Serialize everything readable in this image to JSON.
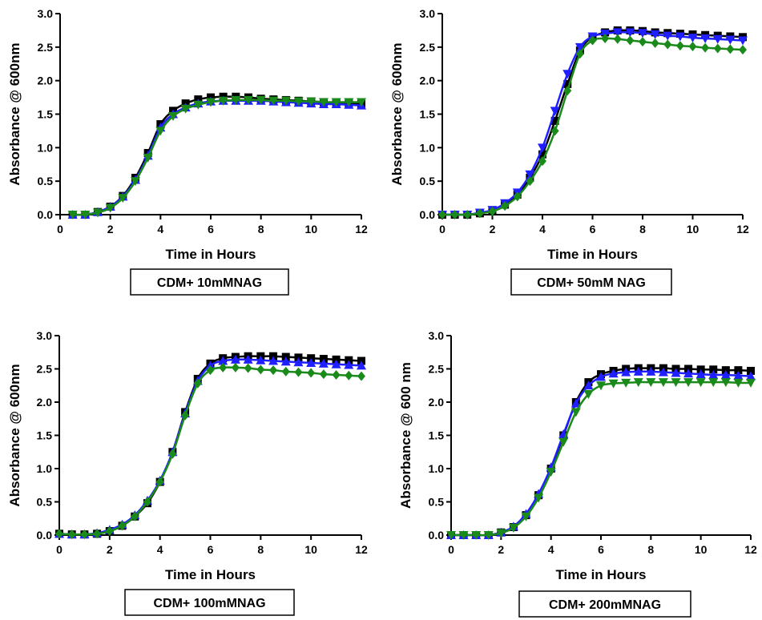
{
  "chart_data": [
    {
      "type": "line",
      "caption": "CDM+ 10mMNAG",
      "xlabel": "Time in Hours",
      "ylabel": "Absorbance @ 600nm",
      "xlim": [
        0,
        12
      ],
      "ylim": [
        0,
        3.0
      ],
      "xticks": [
        "0",
        "2",
        "4",
        "6",
        "8",
        "10",
        "12"
      ],
      "yticks": [
        "0.0",
        "0.5",
        "1.0",
        "1.5",
        "2.0",
        "2.5",
        "3.0"
      ],
      "x": [
        0.5,
        1,
        1.5,
        2,
        2.5,
        3,
        3.5,
        4,
        4.5,
        5,
        5.5,
        6,
        6.5,
        7,
        7.5,
        8,
        8.5,
        9,
        9.5,
        10,
        10.5,
        11,
        11.5,
        12
      ],
      "series": [
        {
          "color": "#000000",
          "marker": "square",
          "values": [
            0.0,
            0.0,
            0.04,
            0.12,
            0.28,
            0.55,
            0.92,
            1.35,
            1.55,
            1.66,
            1.72,
            1.75,
            1.76,
            1.76,
            1.75,
            1.73,
            1.72,
            1.71,
            1.7,
            1.69,
            1.68,
            1.67,
            1.66,
            1.65
          ]
        },
        {
          "color": "#1f1fff",
          "marker": "triangle-up",
          "values": [
            0.0,
            0.0,
            0.04,
            0.12,
            0.27,
            0.52,
            0.88,
            1.3,
            1.5,
            1.6,
            1.66,
            1.69,
            1.7,
            1.7,
            1.7,
            1.7,
            1.69,
            1.68,
            1.67,
            1.66,
            1.65,
            1.65,
            1.64,
            1.63
          ]
        },
        {
          "color": "#1a8a1a",
          "marker": "triangle-down",
          "values": [
            0.0,
            0.0,
            0.03,
            0.1,
            0.25,
            0.5,
            0.85,
            1.25,
            1.47,
            1.58,
            1.64,
            1.68,
            1.7,
            1.71,
            1.71,
            1.71,
            1.7,
            1.7,
            1.69,
            1.69,
            1.68,
            1.68,
            1.68,
            1.68
          ]
        }
      ]
    },
    {
      "type": "line",
      "caption": "CDM+ 50mM NAG",
      "xlabel": "Time in Hours",
      "ylabel": "Absorbance @ 600nm",
      "xlim": [
        0,
        12
      ],
      "ylim": [
        0,
        3.0
      ],
      "xticks": [
        "0",
        "2",
        "4",
        "6",
        "8",
        "10",
        "12"
      ],
      "yticks": [
        "0.0",
        "0.5",
        "1.0",
        "1.5",
        "2.0",
        "2.5",
        "3.0"
      ],
      "x": [
        0,
        0.5,
        1,
        1.5,
        2,
        2.5,
        3,
        3.5,
        4,
        4.5,
        5,
        5.5,
        6,
        6.5,
        7,
        7.5,
        8,
        8.5,
        9,
        9.5,
        10,
        10.5,
        11,
        11.5,
        12
      ],
      "series": [
        {
          "color": "#000000",
          "marker": "square",
          "values": [
            0.0,
            0.0,
            0.0,
            0.02,
            0.06,
            0.15,
            0.3,
            0.55,
            0.9,
            1.4,
            1.95,
            2.45,
            2.65,
            2.72,
            2.75,
            2.75,
            2.74,
            2.72,
            2.71,
            2.7,
            2.69,
            2.68,
            2.67,
            2.66,
            2.65
          ]
        },
        {
          "color": "#1f1fff",
          "marker": "triangle-down",
          "values": [
            0.0,
            0.0,
            0.0,
            0.03,
            0.07,
            0.17,
            0.33,
            0.6,
            1.0,
            1.55,
            2.1,
            2.5,
            2.66,
            2.7,
            2.72,
            2.72,
            2.71,
            2.69,
            2.67,
            2.66,
            2.64,
            2.63,
            2.62,
            2.61,
            2.6
          ]
        },
        {
          "color": "#1a8a1a",
          "marker": "diamond",
          "values": [
            0.0,
            0.0,
            0.0,
            0.02,
            0.05,
            0.13,
            0.27,
            0.5,
            0.8,
            1.25,
            1.85,
            2.4,
            2.6,
            2.63,
            2.62,
            2.6,
            2.58,
            2.56,
            2.54,
            2.52,
            2.51,
            2.49,
            2.48,
            2.47,
            2.46
          ]
        }
      ]
    },
    {
      "type": "line",
      "caption": "CDM+ 100mMNAG",
      "xlabel": "Time in Hours",
      "ylabel": "Absorbance @ 600nm",
      "xlim": [
        0,
        12
      ],
      "ylim": [
        0,
        3.0
      ],
      "xticks": [
        "0",
        "2",
        "4",
        "6",
        "8",
        "10",
        "12"
      ],
      "yticks": [
        "0.0",
        "0.5",
        "1.0",
        "1.5",
        "2.0",
        "2.5",
        "3.0"
      ],
      "x": [
        0,
        0.5,
        1,
        1.5,
        2,
        2.5,
        3,
        3.5,
        4,
        4.5,
        5,
        5.5,
        6,
        6.5,
        7,
        7.5,
        8,
        8.5,
        9,
        9.5,
        10,
        10.5,
        11,
        11.5,
        12
      ],
      "series": [
        {
          "color": "#000000",
          "marker": "square",
          "values": [
            0.02,
            0.01,
            0.01,
            0.02,
            0.06,
            0.14,
            0.28,
            0.48,
            0.8,
            1.25,
            1.85,
            2.35,
            2.58,
            2.66,
            2.68,
            2.69,
            2.69,
            2.69,
            2.68,
            2.67,
            2.66,
            2.65,
            2.64,
            2.63,
            2.62
          ]
        },
        {
          "color": "#1f1fff",
          "marker": "triangle-up",
          "values": [
            0.02,
            0.01,
            0.01,
            0.03,
            0.08,
            0.16,
            0.3,
            0.52,
            0.82,
            1.25,
            1.83,
            2.32,
            2.55,
            2.62,
            2.64,
            2.64,
            2.63,
            2.62,
            2.61,
            2.6,
            2.59,
            2.58,
            2.57,
            2.56,
            2.55
          ]
        },
        {
          "color": "#1a8a1a",
          "marker": "diamond",
          "values": [
            0.02,
            0.01,
            0.01,
            0.02,
            0.06,
            0.14,
            0.28,
            0.5,
            0.8,
            1.22,
            1.8,
            2.28,
            2.48,
            2.52,
            2.52,
            2.51,
            2.49,
            2.48,
            2.46,
            2.45,
            2.44,
            2.42,
            2.41,
            2.4,
            2.39
          ]
        }
      ]
    },
    {
      "type": "line",
      "caption": "CDM+ 200mMNAG",
      "xlabel": "Time in Hours",
      "ylabel": "Absorbance @ 600 nm",
      "xlim": [
        0,
        12
      ],
      "ylim": [
        0,
        3.0
      ],
      "xticks": [
        "0",
        "2",
        "4",
        "6",
        "8",
        "10",
        "12"
      ],
      "yticks": [
        "0.0",
        "0.5",
        "1.0",
        "1.5",
        "2.0",
        "2.5",
        "3.0"
      ],
      "x": [
        0,
        0.5,
        1,
        1.5,
        2,
        2.5,
        3,
        3.5,
        4,
        4.5,
        5,
        5.5,
        6,
        6.5,
        7,
        7.5,
        8,
        8.5,
        9,
        9.5,
        10,
        10.5,
        11,
        11.5,
        12
      ],
      "series": [
        {
          "color": "#000000",
          "marker": "square",
          "values": [
            0.0,
            0.0,
            0.0,
            0.0,
            0.04,
            0.12,
            0.3,
            0.6,
            1.0,
            1.5,
            2.0,
            2.3,
            2.42,
            2.47,
            2.5,
            2.51,
            2.51,
            2.51,
            2.5,
            2.5,
            2.49,
            2.49,
            2.48,
            2.48,
            2.47
          ]
        },
        {
          "color": "#1f1fff",
          "marker": "triangle-up",
          "values": [
            0.0,
            0.0,
            0.0,
            0.0,
            0.04,
            0.13,
            0.32,
            0.62,
            1.02,
            1.52,
            1.98,
            2.25,
            2.38,
            2.43,
            2.45,
            2.46,
            2.46,
            2.45,
            2.44,
            2.43,
            2.42,
            2.41,
            2.41,
            2.4,
            2.39
          ]
        },
        {
          "color": "#1a8a1a",
          "marker": "triangle-down",
          "values": [
            0.0,
            0.0,
            0.0,
            0.0,
            0.03,
            0.11,
            0.28,
            0.56,
            0.95,
            1.4,
            1.85,
            2.12,
            2.25,
            2.28,
            2.29,
            2.3,
            2.3,
            2.3,
            2.3,
            2.3,
            2.3,
            2.3,
            2.3,
            2.29,
            2.29
          ]
        }
      ]
    }
  ]
}
